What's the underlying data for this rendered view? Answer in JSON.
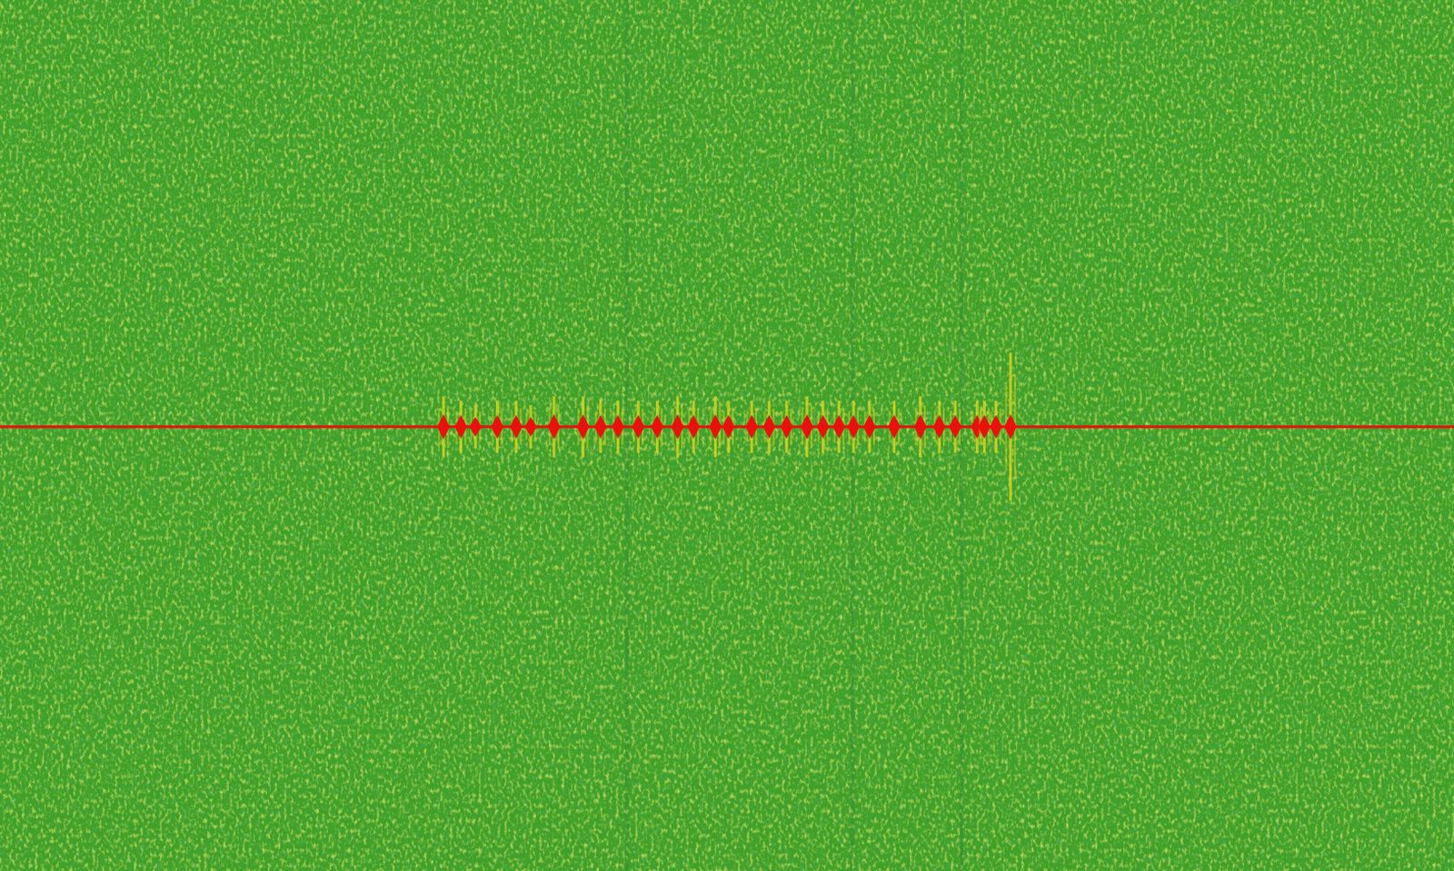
{
  "chart_data": {
    "type": "spectrogram",
    "xlim": [
      0,
      100
    ],
    "ylim": [
      0,
      100
    ],
    "tick_labels": false,
    "color": "#e8120c",
    "carrier": 51,
    "x": [
      30.5,
      31.7,
      32.7,
      34.2,
      35.5,
      36.5,
      38.1,
      40.1,
      41.3,
      42.5,
      43.9,
      45.2,
      46.6,
      47.7,
      49.2,
      50.1,
      51.7,
      52.9,
      54.1,
      55.5,
      56.6,
      57.7,
      58.7,
      59.8,
      61.5,
      63.3,
      64.6,
      65.7,
      67.2,
      67.7,
      68.5,
      69.5
    ],
    "values": [
      3.5,
      3.0,
      2.5,
      3.0,
      3.0,
      2.5,
      3.5,
      3.5,
      3.0,
      3.0,
      3.0,
      3.0,
      3.5,
      3.0,
      3.5,
      3.0,
      3.0,
      3.0,
      3.0,
      3.5,
      3.0,
      3.0,
      3.0,
      3.0,
      3.0,
      3.5,
      3.0,
      3.0,
      3.0,
      3.0,
      3.0,
      8.5
    ]
  }
}
